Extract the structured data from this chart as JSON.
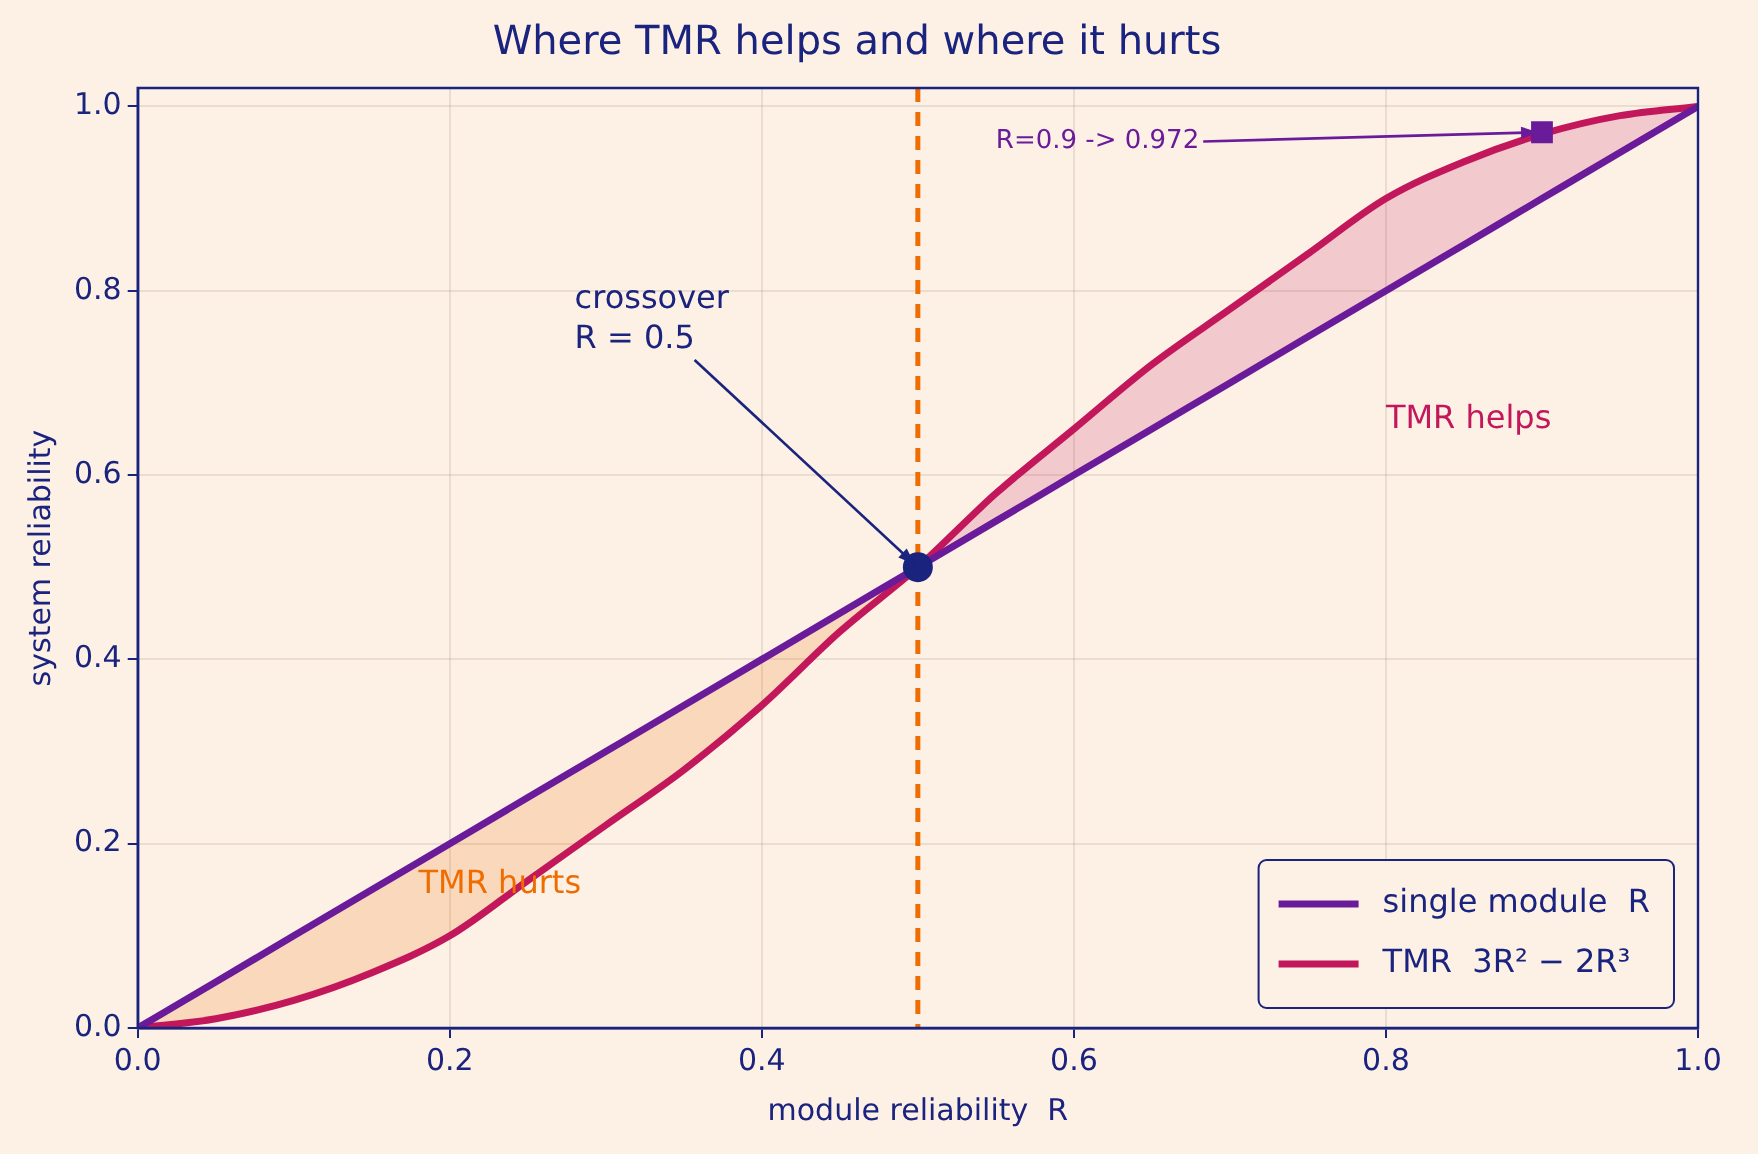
{
  "chart_data": {
    "type": "line",
    "title": "Where TMR helps and where it hurts",
    "xlabel": "module reliability  R",
    "ylabel": "system reliability",
    "x": [
      0,
      0.05,
      0.1,
      0.15,
      0.2,
      0.25,
      0.3,
      0.35,
      0.4,
      0.45,
      0.5,
      0.55,
      0.6,
      0.65,
      0.7,
      0.75,
      0.8,
      0.85,
      0.9,
      0.95,
      1
    ],
    "series": [
      {
        "name": "single module  R",
        "color": "#6a1b9a",
        "values": [
          0,
          0.05,
          0.1,
          0.15,
          0.2,
          0.25,
          0.3,
          0.35,
          0.4,
          0.45,
          0.5,
          0.55,
          0.6,
          0.65,
          0.7,
          0.75,
          0.8,
          0.85,
          0.9,
          0.95,
          1
        ]
      },
      {
        "name": "TMR  3R² − 2R³",
        "color": "#c2185b",
        "values": [
          0,
          0.01,
          0.03,
          0.06,
          0.1,
          0.16,
          0.22,
          0.28,
          0.35,
          0.43,
          0.5,
          0.58,
          0.65,
          0.72,
          0.78,
          0.84,
          0.9,
          0.94,
          0.97,
          0.99,
          1
        ]
      },
      {
        "type": "scatter",
        "color": "#1a237e",
        "marker": "circle",
        "x": [
          0.5
        ],
        "values": [
          0.5
        ]
      },
      {
        "type": "scatter",
        "color": "#6a1b9a",
        "marker": "square",
        "x": [
          0.9
        ],
        "values": [
          0.972
        ]
      }
    ],
    "ref_lines": [
      {
        "axis": "x",
        "value": 0.5,
        "color": "#ef6c00",
        "line_style": "dashed"
      }
    ],
    "annotations": [
      {
        "text": "crossover\nR = 0.5",
        "x": 0.5,
        "y": 0.5
      },
      {
        "text": "R=0.9 -> 0.972",
        "x": 0.9,
        "y": 0.972
      },
      "TMR helps",
      "TMR hurts"
    ],
    "xlim": [
      0,
      1
    ],
    "xticks": [
      {
        "value": 0,
        "label": "0.0"
      },
      0.2,
      0.4,
      0.6,
      0.8,
      {
        "value": 1,
        "label": "1.0"
      }
    ],
    "ylim": [
      0,
      1.02
    ],
    "yticks": [
      {
        "value": 0,
        "label": "0.0"
      },
      0.2,
      0.4,
      0.6,
      0.8,
      {
        "value": 1,
        "label": "1.0"
      }
    ],
    "grid": true,
    "legend": "bottom right"
  }
}
